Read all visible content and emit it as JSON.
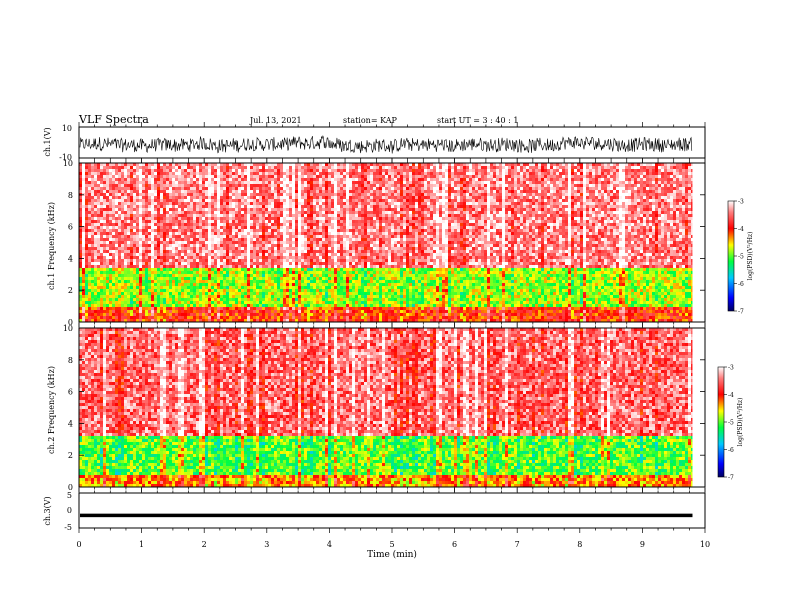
{
  "header": {
    "title": "VLF Spectra",
    "date": "Jul. 13, 2021",
    "station": "station= KAP",
    "start": "start UT = 3 : 40 : 1"
  },
  "chart_data": [
    {
      "type": "line",
      "panel": "ch1-waveform",
      "ylabel": "ch.1(V)",
      "ylim": [
        -10,
        10
      ],
      "yticks": [
        "10",
        "-10"
      ],
      "xlim": [
        0,
        10
      ],
      "data_end_min": 9.8,
      "description_values": {
        "mean": -1.5,
        "amplitude": 4.5
      }
    },
    {
      "type": "heatmap",
      "panel": "ch1-spectrogram",
      "ylabel": "ch.1 Frequency (kHz)",
      "ylim": [
        0,
        10
      ],
      "yticks": [
        "0",
        "2",
        "4",
        "6",
        "8",
        "10"
      ],
      "xlim": [
        0,
        10
      ],
      "data_end_min": 9.8,
      "colorbar": {
        "label": "log(PSD)(V²/Hz)",
        "range": [
          -7,
          -3
        ],
        "ticks": [
          "-3",
          "-4",
          "-5",
          "-6",
          "-7"
        ]
      },
      "bands": [
        {
          "from_khz": 0,
          "to_khz": 1.0,
          "level": -4.0
        },
        {
          "from_khz": 1.0,
          "to_khz": 3.5,
          "level": -4.8
        },
        {
          "from_khz": 3.5,
          "to_khz": 10,
          "level": -3.4
        }
      ]
    },
    {
      "type": "heatmap",
      "panel": "ch2-spectrogram",
      "ylabel": "ch.2 Frequency (kHz)",
      "ylim": [
        0,
        10
      ],
      "yticks": [
        "0",
        "2",
        "4",
        "6",
        "8",
        "10"
      ],
      "xlim": [
        0,
        10
      ],
      "data_end_min": 9.8,
      "colorbar": {
        "label": "log(PSD)(V²/Hz)",
        "range": [
          -7,
          -3
        ],
        "ticks": [
          "-3",
          "-4",
          "-5",
          "-6",
          "-7"
        ]
      },
      "bands": [
        {
          "from_khz": 0,
          "to_khz": 0.8,
          "level": -4.3
        },
        {
          "from_khz": 0.8,
          "to_khz": 3.3,
          "level": -5.0
        },
        {
          "from_khz": 3.3,
          "to_khz": 10,
          "level": -3.5
        }
      ]
    },
    {
      "type": "line",
      "panel": "ch3-waveform",
      "ylabel": "ch.3(V)",
      "ylim": [
        -5,
        5
      ],
      "yticks": [
        "5",
        "0",
        "-5"
      ],
      "xlim": [
        0,
        10
      ],
      "data_end_min": 9.8,
      "description_values": {
        "mean": -1.4,
        "amplitude": 0.5
      }
    }
  ],
  "xaxis": {
    "label": "Time (min)",
    "ticks": [
      "0",
      "1",
      "2",
      "3",
      "4",
      "5",
      "6",
      "7",
      "8",
      "9",
      "10"
    ]
  }
}
